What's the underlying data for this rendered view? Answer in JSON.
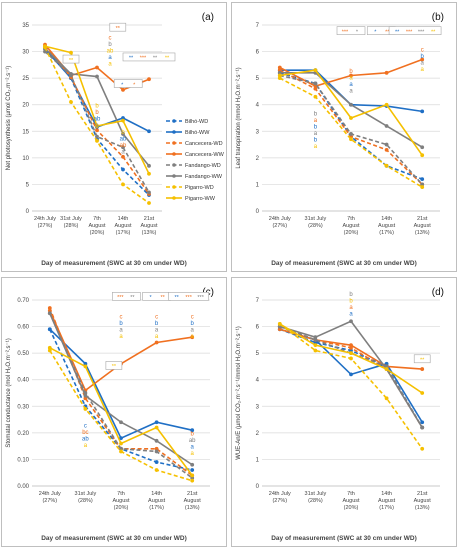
{
  "colors": {
    "Bilhó": "#1f6fc5",
    "Cancecera": "#f07020",
    "Fandango": "#7f7f7f",
    "Pigarro": "#f5c000"
  },
  "x_labels": [
    [
      "24th July",
      "(27%)"
    ],
    [
      "31st July",
      "(28%)"
    ],
    [
      "7th",
      "August",
      "(20%)"
    ],
    [
      "14th",
      "August",
      "(17%)"
    ],
    [
      "21st",
      "August",
      "(13%)"
    ]
  ],
  "xlabel": "Day of measurement (SWC at 30 cm under WD)",
  "chart_data": [
    {
      "type": "line",
      "panel": "(a)",
      "ylabel": "Net photosynthesis (µmol CO₂.m⁻².s⁻¹)",
      "ylim": [
        0,
        35
      ],
      "yticks": [
        0,
        5,
        10,
        15,
        20,
        25,
        30,
        35
      ],
      "legend": "right",
      "series": [
        {
          "name": "Bilhó-WD",
          "variety": "Bilhó",
          "dashed": true,
          "values": [
            30.6,
            25.0,
            13.6,
            7.8,
            3.0
          ]
        },
        {
          "name": "Bilhó-WW",
          "variety": "Bilhó",
          "dashed": false,
          "values": [
            30.5,
            25.0,
            15.8,
            17.5,
            15.0
          ]
        },
        {
          "name": "Cancecera-WD",
          "variety": "Cancecera",
          "dashed": true,
          "values": [
            31.0,
            25.2,
            15.2,
            10.2,
            3.2
          ]
        },
        {
          "name": "Cancecera-WW",
          "variety": "Cancecera",
          "dashed": false,
          "values": [
            31.3,
            25.5,
            27.0,
            22.8,
            24.8
          ]
        },
        {
          "name": "Fandango-WD",
          "variety": "Fandango",
          "dashed": true,
          "values": [
            30.0,
            25.5,
            14.0,
            12.0,
            3.5
          ]
        },
        {
          "name": "Fandango-WW",
          "variety": "Fandango",
          "dashed": false,
          "values": [
            30.6,
            25.8,
            25.3,
            14.5,
            8.5
          ]
        },
        {
          "name": "Pigarro-WD",
          "variety": "Pigarro",
          "dashed": true,
          "values": [
            30.8,
            20.5,
            13.2,
            5.0,
            1.5
          ]
        },
        {
          "name": "Pigarro-WW",
          "variety": "Pigarro",
          "dashed": false,
          "values": [
            31.0,
            29.8,
            16.0,
            17.0,
            7.0
          ]
        }
      ],
      "letter_groups": [
        {
          "x": 2,
          "y": 19.5,
          "letters": [
            [
              "b",
              "Pigarro"
            ],
            [
              "b",
              "Cancecera"
            ],
            [
              "ab",
              "Bilhó"
            ],
            [
              "a",
              "Fandango"
            ]
          ]
        },
        {
          "x": 3,
          "y": 14.5,
          "letters": [
            [
              "b",
              "Pigarro"
            ],
            [
              "ab",
              "Bilhó"
            ],
            [
              "ab",
              "Cancecera"
            ],
            [
              "a",
              "Fandango"
            ]
          ]
        },
        {
          "x": 2.5,
          "y": 32.3,
          "letters": [
            [
              "c",
              "Cancecera"
            ],
            [
              "b",
              "Fandango"
            ],
            [
              "ab",
              "Pigarro"
            ],
            [
              "a",
              "Bilhó"
            ],
            [
              "a",
              "Pigarro"
            ]
          ]
        }
      ],
      "sig_boxes": [
        {
          "x": 1.0,
          "y": 28.4,
          "items": [
            [
              "**",
              "Pigarro"
            ]
          ]
        },
        {
          "x": 2.8,
          "y": 34.4,
          "items": [
            [
              "**",
              "Cancecera"
            ]
          ]
        },
        {
          "x": 3.2,
          "y": 23.8,
          "items": [
            [
              "*",
              "Bilhó"
            ],
            [
              "*",
              "Cancecera"
            ]
          ]
        },
        {
          "x": 4.0,
          "y": 28.8,
          "items": [
            [
              "**",
              "Bilhó"
            ],
            [
              "***",
              "Cancecera"
            ],
            [
              "**",
              "Fandango"
            ],
            [
              "**",
              "Pigarro"
            ]
          ]
        }
      ]
    },
    {
      "type": "line",
      "panel": "(b)",
      "ylabel": "Leaf transpiration (mmol H₂O.m⁻².s⁻¹)",
      "ylim": [
        0,
        7
      ],
      "yticks": [
        0,
        1,
        2,
        3,
        4,
        5,
        6,
        7
      ],
      "series": [
        {
          "name": "Bilhó-WD",
          "variety": "Bilhó",
          "dashed": true,
          "values": [
            5.2,
            4.8,
            2.8,
            1.7,
            1.2
          ]
        },
        {
          "name": "Bilhó-WW",
          "variety": "Bilhó",
          "dashed": false,
          "values": [
            5.3,
            5.3,
            4.0,
            3.95,
            3.75
          ]
        },
        {
          "name": "Cancecera-WD",
          "variety": "Cancecera",
          "dashed": true,
          "values": [
            5.3,
            4.6,
            2.8,
            2.3,
            1.0
          ]
        },
        {
          "name": "Cancecera-WW",
          "variety": "Cancecera",
          "dashed": false,
          "values": [
            5.4,
            4.7,
            5.1,
            5.2,
            5.7
          ]
        },
        {
          "name": "Fandango-WD",
          "variety": "Fandango",
          "dashed": true,
          "values": [
            5.1,
            4.8,
            2.9,
            2.5,
            1.0
          ]
        },
        {
          "name": "Fandango-WW",
          "variety": "Fandango",
          "dashed": false,
          "values": [
            5.2,
            5.2,
            4.0,
            3.2,
            2.4
          ]
        },
        {
          "name": "Pigarro-WD",
          "variety": "Pigarro",
          "dashed": true,
          "values": [
            5.0,
            4.3,
            2.7,
            1.7,
            0.9
          ]
        },
        {
          "name": "Pigarro-WW",
          "variety": "Pigarro",
          "dashed": false,
          "values": [
            5.1,
            5.3,
            3.5,
            4.0,
            2.1
          ]
        }
      ],
      "letter_groups": [
        {
          "x": 1,
          "y": 3.6,
          "letters": [
            [
              "b",
              "Fandango"
            ],
            [
              "a",
              "Cancecera"
            ],
            [
              "b",
              "Bilhó"
            ],
            [
              "a",
              "Fandango"
            ],
            [
              "b",
              "Bilhó"
            ],
            [
              "a",
              "Pigarro"
            ]
          ]
        },
        {
          "x": 2,
          "y": 5.2,
          "letters": [
            [
              "b",
              "Cancecera"
            ],
            [
              "a",
              "Pigarro"
            ],
            [
              "a",
              "Bilhó"
            ],
            [
              "a",
              "Fandango"
            ]
          ]
        },
        {
          "x": 4,
          "y": 6.0,
          "letters": [
            [
              "c",
              "Cancecera"
            ],
            [
              "b",
              "Bilhó"
            ],
            [
              "a",
              "Fandango"
            ],
            [
              "a",
              "Pigarro"
            ]
          ]
        }
      ],
      "sig_boxes": [
        {
          "x": 2.0,
          "y": 6.75,
          "items": [
            [
              "***",
              "Cancecera"
            ],
            [
              "*",
              "Fandango"
            ]
          ]
        },
        {
          "x": 2.85,
          "y": 6.75,
          "items": [
            [
              "*",
              "Bilhó"
            ],
            [
              "**",
              "Cancecera"
            ]
          ]
        },
        {
          "x": 3.8,
          "y": 6.75,
          "items": [
            [
              "**",
              "Bilhó"
            ],
            [
              "***",
              "Cancecera"
            ],
            [
              "***",
              "Fandango"
            ],
            [
              "**",
              "Pigarro"
            ]
          ]
        }
      ]
    },
    {
      "type": "line",
      "panel": "(c)",
      "ylabel": "Stomatal conductance (mol H₂O.m⁻².s⁻¹)",
      "ylim": [
        0,
        0.7
      ],
      "yticks": [
        0.0,
        0.1,
        0.2,
        0.3,
        0.4,
        0.5,
        0.6,
        0.7
      ],
      "ytick_decimals": 2,
      "series": [
        {
          "name": "Bilhó-WD",
          "variety": "Bilhó",
          "dashed": true,
          "values": [
            0.59,
            0.3,
            0.14,
            0.09,
            0.06
          ]
        },
        {
          "name": "Bilhó-WW",
          "variety": "Bilhó",
          "dashed": false,
          "values": [
            0.59,
            0.46,
            0.18,
            0.24,
            0.21
          ]
        },
        {
          "name": "Cancecera-WD",
          "variety": "Cancecera",
          "dashed": true,
          "values": [
            0.67,
            0.33,
            0.14,
            0.14,
            0.04
          ]
        },
        {
          "name": "Cancecera-WW",
          "variety": "Cancecera",
          "dashed": false,
          "values": [
            0.66,
            0.36,
            0.46,
            0.54,
            0.56
          ]
        },
        {
          "name": "Fandango-WD",
          "variety": "Fandango",
          "dashed": true,
          "values": [
            0.65,
            0.35,
            0.14,
            0.13,
            0.03
          ]
        },
        {
          "name": "Fandango-WW",
          "variety": "Fandango",
          "dashed": false,
          "values": [
            0.65,
            0.34,
            0.24,
            0.17,
            0.08
          ]
        },
        {
          "name": "Pigarro-WD",
          "variety": "Pigarro",
          "dashed": true,
          "values": [
            0.51,
            0.29,
            0.13,
            0.06,
            0.02
          ]
        },
        {
          "name": "Pigarro-WW",
          "variety": "Pigarro",
          "dashed": false,
          "values": [
            0.52,
            0.45,
            0.16,
            0.22,
            0.04
          ]
        }
      ],
      "letter_groups": [
        {
          "x": 1,
          "y": 0.22,
          "letters": [
            [
              "c",
              "Bilhó"
            ],
            [
              "bc",
              "Cancecera"
            ],
            [
              "ab",
              "Bilhó"
            ],
            [
              "a",
              "Pigarro"
            ]
          ]
        },
        {
          "x": 2,
          "y": 0.63,
          "letters": [
            [
              "c",
              "Cancecera"
            ],
            [
              "b",
              "Bilhó"
            ],
            [
              "a",
              "Fandango"
            ],
            [
              "a",
              "Pigarro"
            ]
          ]
        },
        {
          "x": 3,
          "y": 0.63,
          "letters": [
            [
              "c",
              "Cancecera"
            ],
            [
              "b",
              "Bilhó"
            ],
            [
              "a",
              "Fandango"
            ],
            [
              "a",
              "Pigarro"
            ]
          ]
        },
        {
          "x": 4,
          "y": 0.63,
          "letters": [
            [
              "c",
              "Cancecera"
            ],
            [
              "b",
              "Bilhó"
            ],
            [
              "a",
              "Fandango"
            ],
            [
              "a",
              "Pigarro"
            ]
          ]
        },
        {
          "x": 4,
          "y": 0.19,
          "letters": [
            [
              "b",
              "Cancecera"
            ],
            [
              "ab",
              "Fandango"
            ],
            [
              "a",
              "Bilhó"
            ],
            [
              "a",
              "Pigarro"
            ]
          ]
        }
      ],
      "sig_boxes": [
        {
          "x": 1.8,
          "y": 0.45,
          "items": [
            [
              "**",
              "Pigarro"
            ]
          ]
        },
        {
          "x": 2.15,
          "y": 0.71,
          "items": [
            [
              "***",
              "Cancecera"
            ],
            [
              "**",
              "Fandango"
            ]
          ]
        },
        {
          "x": 3.0,
          "y": 0.71,
          "items": [
            [
              "*",
              "Bilhó"
            ],
            [
              "**",
              "Cancecera"
            ]
          ]
        },
        {
          "x": 3.9,
          "y": 0.71,
          "items": [
            [
              "**",
              "Bilhó"
            ],
            [
              "***",
              "Cancecera"
            ],
            [
              "***",
              "Fandango"
            ]
          ]
        }
      ]
    },
    {
      "type": "line",
      "panel": "(d)",
      "ylabel": "WUE-An/E (µmol CO₂.m⁻².s⁻¹/mmol H₂O.m⁻².s⁻¹)",
      "ylim": [
        0,
        7
      ],
      "yticks": [
        0,
        1,
        2,
        3,
        4,
        5,
        6,
        7
      ],
      "series": [
        {
          "name": "Bilhó-WD",
          "variety": "Bilhó",
          "dashed": true,
          "values": [
            5.9,
            5.4,
            5.1,
            4.5,
            2.2
          ]
        },
        {
          "name": "Bilhó-WW",
          "variety": "Bilhó",
          "dashed": false,
          "values": [
            5.9,
            5.5,
            4.2,
            4.6,
            2.4
          ]
        },
        {
          "name": "Cancecera-WD",
          "variety": "Cancecera",
          "dashed": true,
          "values": [
            6.0,
            5.5,
            5.2,
            4.4,
            2.2
          ]
        },
        {
          "name": "Cancecera-WW",
          "variety": "Cancecera",
          "dashed": false,
          "values": [
            5.9,
            5.5,
            5.3,
            4.5,
            4.4
          ]
        },
        {
          "name": "Fandango-WD",
          "variety": "Fandango",
          "dashed": true,
          "values": [
            6.0,
            5.5,
            5.0,
            4.5,
            2.2
          ]
        },
        {
          "name": "Fandango-WW",
          "variety": "Fandango",
          "dashed": false,
          "values": [
            6.0,
            5.6,
            6.2,
            4.4,
            2.2
          ]
        },
        {
          "name": "Pigarro-WD",
          "variety": "Pigarro",
          "dashed": true,
          "values": [
            6.1,
            5.1,
            4.8,
            3.3,
            1.4
          ]
        },
        {
          "name": "Pigarro-WW",
          "variety": "Pigarro",
          "dashed": false,
          "values": [
            6.1,
            5.3,
            5.0,
            4.4,
            3.5
          ]
        }
      ],
      "letter_groups": [
        {
          "x": 2,
          "y": 7.15,
          "letters": [
            [
              "b",
              "Fandango"
            ],
            [
              "b",
              "Pigarro"
            ],
            [
              "a",
              "Cancecera"
            ],
            [
              "a",
              "Bilhó"
            ]
          ]
        }
      ],
      "sig_boxes": [
        {
          "x": 4.0,
          "y": 4.75,
          "items": [
            [
              "**",
              "Pigarro"
            ]
          ]
        }
      ]
    }
  ]
}
